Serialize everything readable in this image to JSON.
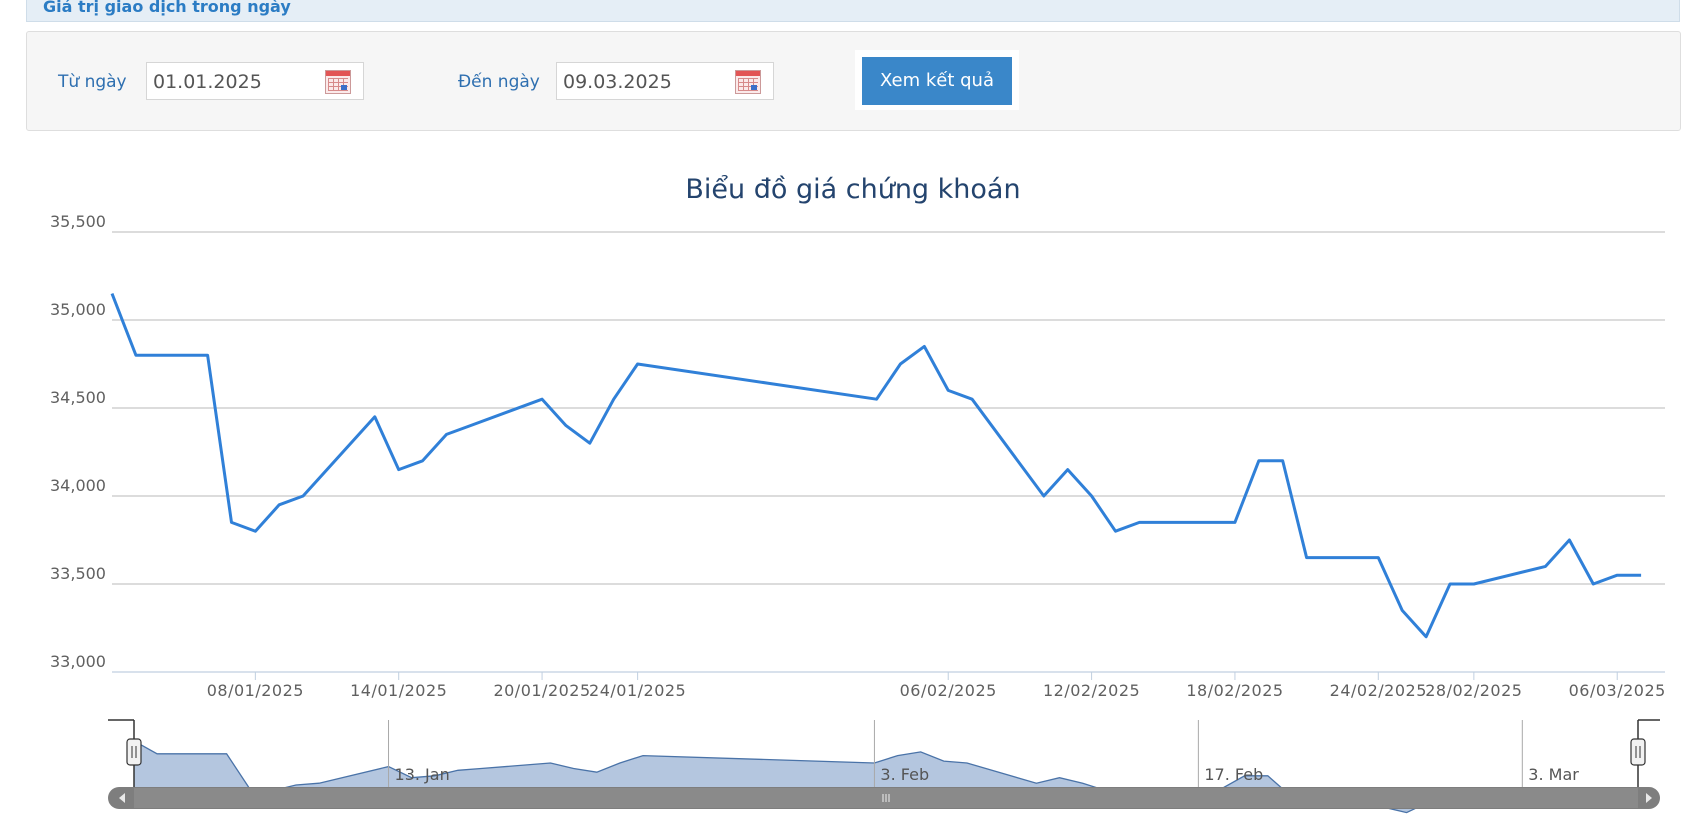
{
  "header": {
    "title": "Giá trị giao dịch trong ngày"
  },
  "filter": {
    "from_label": "Từ ngày",
    "from_value": "01.01.2025",
    "to_label": "Đến ngày",
    "to_value": "09.03.2025",
    "submit_label": "Xem kết quả"
  },
  "colors": {
    "line": "#3080d8",
    "navigator_fill": "#b4c6df",
    "navigator_line": "#4a73a8",
    "header_text": "#2b7cc4"
  },
  "chart_data": {
    "type": "line",
    "title": "Biểu đồ giá chứng khoán",
    "ylim": [
      33000,
      35500
    ],
    "yticks": [
      33000,
      33500,
      34000,
      34500,
      35000,
      35500
    ],
    "ytick_labels": [
      "33,000",
      "33,500",
      "34,000",
      "34,500",
      "35,000",
      "35,500"
    ],
    "xtick_labels": [
      "08/01/2025",
      "14/01/2025",
      "20/01/2025",
      "24/01/2025",
      "06/02/2025",
      "12/02/2025",
      "18/02/2025",
      "24/02/2025",
      "28/02/2025",
      "06/03/2025"
    ],
    "grid": true,
    "legend": "none",
    "series": [
      {
        "x": [
          "02/01/2025",
          "03/01/2025",
          "06/01/2025",
          "07/01/2025",
          "08/01/2025",
          "09/01/2025",
          "10/01/2025",
          "13/01/2025",
          "14/01/2025",
          "15/01/2025",
          "16/01/2025",
          "17/01/2025",
          "20/01/2025",
          "21/01/2025",
          "22/01/2025",
          "23/01/2025",
          "24/01/2025",
          "03/02/2025",
          "04/02/2025",
          "05/02/2025",
          "06/02/2025",
          "07/02/2025",
          "10/02/2025",
          "11/02/2025",
          "12/02/2025",
          "13/02/2025",
          "14/02/2025",
          "17/02/2025",
          "18/02/2025",
          "19/02/2025",
          "20/02/2025",
          "21/02/2025",
          "24/02/2025",
          "25/02/2025",
          "26/02/2025",
          "27/02/2025",
          "28/02/2025",
          "03/03/2025",
          "04/03/2025",
          "05/03/2025",
          "06/03/2025",
          "07/03/2025"
        ],
        "values": [
          35150,
          34800,
          34800,
          33850,
          33800,
          33950,
          34000,
          34450,
          34150,
          34200,
          34350,
          34400,
          34550,
          34400,
          34300,
          34550,
          34750,
          34550,
          34750,
          34850,
          34600,
          34550,
          34000,
          34150,
          34000,
          33800,
          33850,
          33850,
          33850,
          34200,
          34200,
          33650,
          33650,
          33350,
          33200,
          33500,
          33500,
          33600,
          33750,
          33500,
          33550,
          33550
        ]
      }
    ],
    "navigator": {
      "tick_labels": [
        "13. Jan",
        "3. Feb",
        "17. Feb",
        "3. Mar"
      ]
    }
  }
}
